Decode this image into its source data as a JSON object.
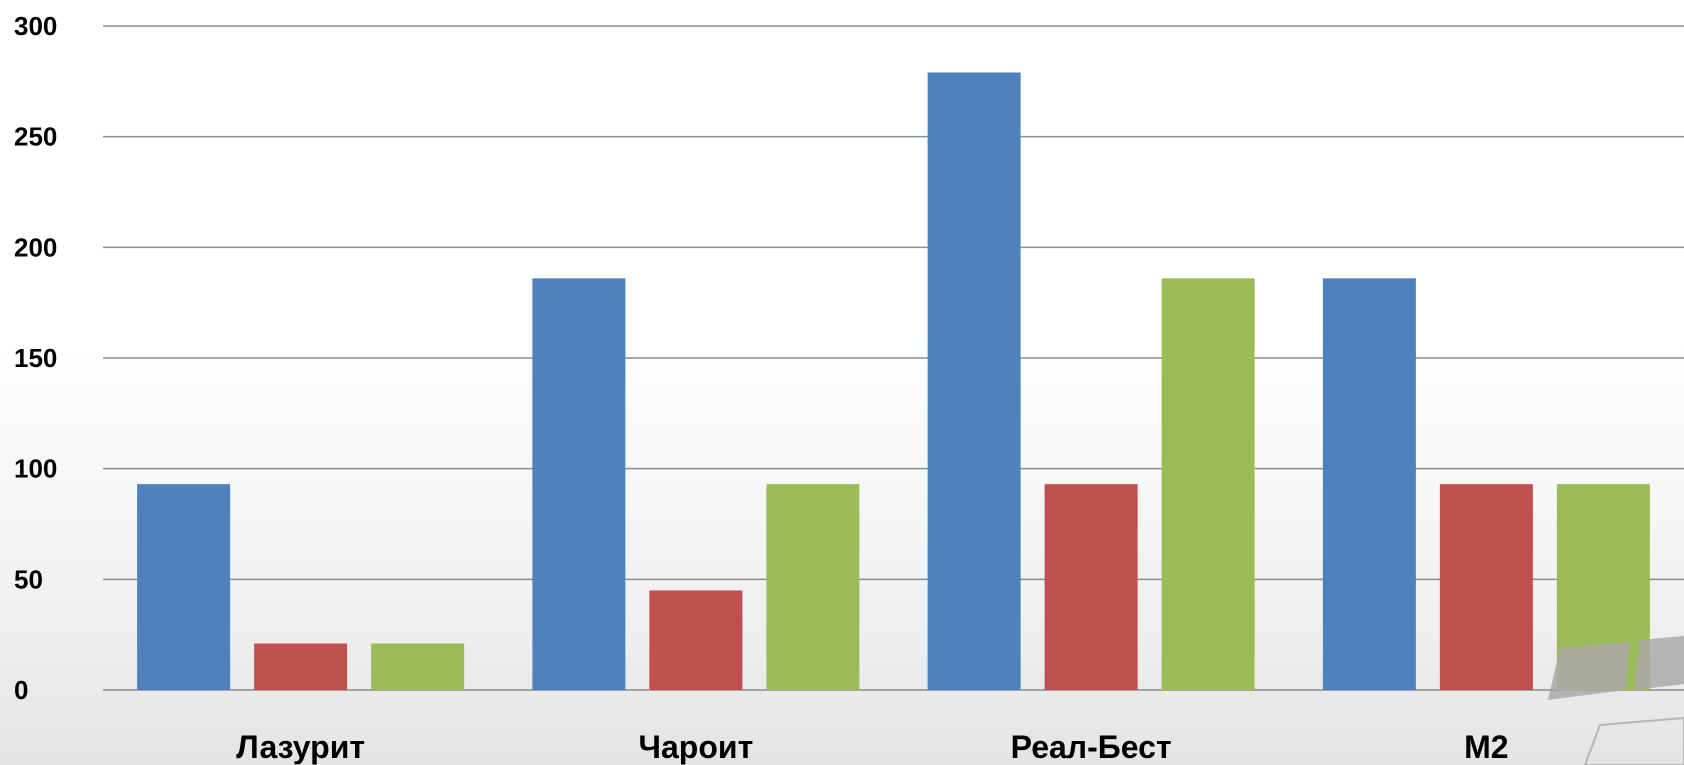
{
  "chart_data": {
    "type": "bar",
    "categories": [
      "Лазурит",
      "Чароит",
      "Реал-Бест",
      "М2"
    ],
    "series": [
      {
        "color": "#4f81bd",
        "values": [
          93,
          186,
          279,
          186
        ]
      },
      {
        "color": "#c0504d",
        "values": [
          21,
          45,
          93,
          93
        ]
      },
      {
        "color": "#9bbb59",
        "values": [
          21,
          93,
          186,
          93
        ]
      }
    ],
    "ylim": [
      0,
      300
    ],
    "yticks": [
      0,
      50,
      100,
      150,
      200,
      250,
      300
    ],
    "grid": true,
    "legend": "none"
  }
}
